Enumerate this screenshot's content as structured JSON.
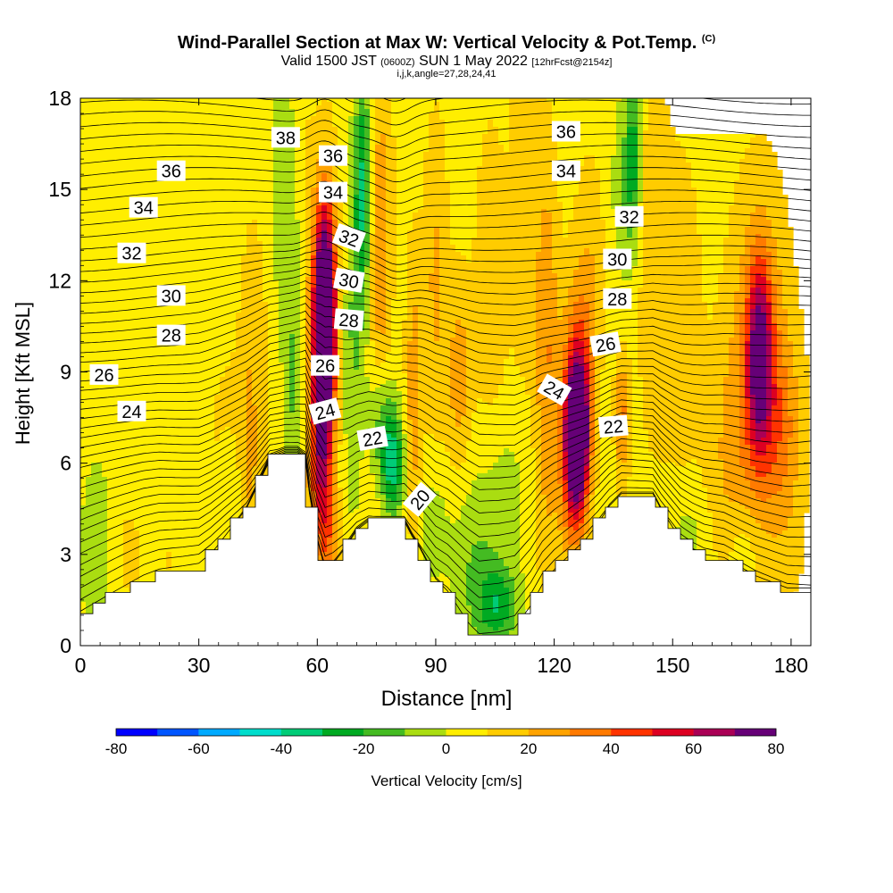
{
  "title": {
    "main": "Wind-Parallel Section at Max W: Vertical Velocity & Pot.Temp.",
    "copyright": "(C)",
    "valid_a": "Valid 1500 JST",
    "valid_z": "(0600Z)",
    "valid_b": "SUN 1 May 2022",
    "fcst": "[12hrFcst@2154z]",
    "params": "i,j,k,angle=27,28,24,41"
  },
  "chart_data": {
    "type": "heatmap",
    "xlabel": "Distance [nm]",
    "ylabel": "Height [Kft MSL]",
    "xlim": [
      0,
      185
    ],
    "ylim": [
      0,
      18
    ],
    "x_ticks": [
      "0",
      "30",
      "60",
      "90",
      "120",
      "150",
      "180"
    ],
    "y_ticks": [
      "0",
      "3",
      "6",
      "9",
      "12",
      "15",
      "18"
    ],
    "colorbar": {
      "label": "Vertical Velocity [cm/s]",
      "min": -80,
      "max": 80,
      "step": 10,
      "tick_labels": [
        "-80",
        "-60",
        "-40",
        "-20",
        "0",
        "20",
        "40",
        "60",
        "80"
      ],
      "colors": [
        "#0000ff",
        "#0055ff",
        "#00aaff",
        "#00ddcc",
        "#00cc77",
        "#00aa22",
        "#44bb22",
        "#aadd11",
        "#ffee00",
        "#ffcc00",
        "#ffa300",
        "#ff7a00",
        "#ff3300",
        "#dd0022",
        "#aa0055",
        "#660077"
      ]
    },
    "terrain_kft": [
      [
        0,
        1.0
      ],
      [
        4,
        1.3
      ],
      [
        8,
        1.6
      ],
      [
        12,
        1.9
      ],
      [
        16,
        2.2
      ],
      [
        20,
        2.4
      ],
      [
        26,
        2.5
      ],
      [
        30,
        2.6
      ],
      [
        33,
        3.0
      ],
      [
        36,
        3.5
      ],
      [
        39,
        4.0
      ],
      [
        42,
        4.5
      ],
      [
        45,
        5.3
      ],
      [
        48,
        6.1
      ],
      [
        52,
        6.3
      ],
      [
        55,
        6.3
      ],
      [
        57,
        6.1
      ],
      [
        58,
        5.0
      ],
      [
        60,
        3.5
      ],
      [
        62,
        2.5
      ],
      [
        64,
        2.7
      ],
      [
        67,
        3.2
      ],
      [
        70,
        3.8
      ],
      [
        73,
        4.1
      ],
      [
        78,
        4.1
      ],
      [
        82,
        4.1
      ],
      [
        84,
        3.6
      ],
      [
        86,
        3.2
      ],
      [
        88,
        2.7
      ],
      [
        90,
        2.2
      ],
      [
        93,
        1.8
      ],
      [
        96,
        1.2
      ],
      [
        98,
        0.8
      ],
      [
        101,
        0.3
      ],
      [
        106,
        0.3
      ],
      [
        110,
        0.4
      ],
      [
        114,
        1.2
      ],
      [
        117,
        2.0
      ],
      [
        120,
        2.5
      ],
      [
        124,
        3.0
      ],
      [
        128,
        3.5
      ],
      [
        131,
        4.0
      ],
      [
        134,
        4.6
      ],
      [
        137,
        5.0
      ],
      [
        141,
        5.0
      ],
      [
        145,
        5.0
      ],
      [
        147,
        4.5
      ],
      [
        149,
        4.1
      ],
      [
        152,
        3.5
      ],
      [
        155,
        3.2
      ],
      [
        158,
        3.0
      ],
      [
        163,
        2.9
      ],
      [
        167,
        2.6
      ],
      [
        171,
        2.3
      ],
      [
        175,
        2.1
      ],
      [
        179,
        1.9
      ],
      [
        185,
        1.9
      ]
    ],
    "w_cells": [
      {
        "x": 8,
        "y": 13,
        "sx": 6,
        "sy": 4,
        "w": 0
      },
      {
        "x": 28,
        "y": 12,
        "sx": 3,
        "sy": 5,
        "w": 7
      },
      {
        "x": 20,
        "y": 16,
        "sx": 12,
        "sy": 2,
        "w": 8
      },
      {
        "x": 38,
        "y": 6,
        "sx": 8,
        "sy": 5,
        "w": 12
      },
      {
        "x": 4,
        "y": 3,
        "sx": 4,
        "sy": 3,
        "w": -10
      },
      {
        "x": 12,
        "y": 3,
        "sx": 4,
        "sy": 2,
        "w": 12
      },
      {
        "x": 22,
        "y": 2.8,
        "sx": 5,
        "sy": 2,
        "w": 10
      },
      {
        "x": 38,
        "y": 4.5,
        "sx": 3,
        "sy": 2,
        "w": -5
      },
      {
        "x": 43,
        "y": 7,
        "sx": 2.5,
        "sy": 6,
        "w": 18
      },
      {
        "x": 47,
        "y": 10,
        "sx": 3,
        "sy": 8,
        "w": 10
      },
      {
        "x": 54,
        "y": 8,
        "sx": 2.5,
        "sy": 6,
        "w": -10
      },
      {
        "x": 51,
        "y": 15,
        "sx": 3,
        "sy": 5,
        "w": -8
      },
      {
        "x": 62,
        "y": 10.5,
        "sx": 2.6,
        "sy": 3,
        "w": 80
      },
      {
        "x": 61,
        "y": 9,
        "sx": 3,
        "sy": 4,
        "w": 50
      },
      {
        "x": 62,
        "y": 13,
        "sx": 3,
        "sy": 3.5,
        "w": 35
      },
      {
        "x": 61,
        "y": 5.5,
        "sx": 3,
        "sy": 2.5,
        "w": 40
      },
      {
        "x": 63,
        "y": 3.2,
        "sx": 3,
        "sy": 1.5,
        "w": 25
      },
      {
        "x": 69,
        "y": 10,
        "sx": 2.5,
        "sy": 6,
        "w": -10
      },
      {
        "x": 71.5,
        "y": 15,
        "sx": 2,
        "sy": 4,
        "w": -30
      },
      {
        "x": 76,
        "y": 13,
        "sx": 2.5,
        "sy": 6,
        "w": 28
      },
      {
        "x": 79,
        "y": 6,
        "sx": 3,
        "sy": 1.8,
        "w": -35
      },
      {
        "x": 76,
        "y": 7.5,
        "sx": 3,
        "sy": 2,
        "w": -15
      },
      {
        "x": 84.5,
        "y": 8,
        "sx": 2,
        "sy": 4.5,
        "w": 28
      },
      {
        "x": 90,
        "y": 12,
        "sx": 3,
        "sy": 5,
        "w": 22
      },
      {
        "x": 89,
        "y": 4,
        "sx": 4,
        "sy": 2,
        "w": -6
      },
      {
        "x": 96,
        "y": 9,
        "sx": 3,
        "sy": 3,
        "w": 25
      },
      {
        "x": 104,
        "y": 12,
        "sx": 4,
        "sy": 5,
        "w": 18
      },
      {
        "x": 100,
        "y": 2.5,
        "sx": 6,
        "sy": 3,
        "w": -10
      },
      {
        "x": 106,
        "y": 1.3,
        "sx": 5,
        "sy": 1.3,
        "w": -25
      },
      {
        "x": 108,
        "y": 5,
        "sx": 6,
        "sy": 2.5,
        "w": -4
      },
      {
        "x": 112,
        "y": 15,
        "sx": 3,
        "sy": 6,
        "w": 18
      },
      {
        "x": 118,
        "y": 10,
        "sx": 3,
        "sy": 6,
        "w": 30
      },
      {
        "x": 126,
        "y": 7,
        "sx": 2.5,
        "sy": 2,
        "w": 80
      },
      {
        "x": 125,
        "y": 6,
        "sx": 3.5,
        "sy": 3,
        "w": 55
      },
      {
        "x": 126,
        "y": 9,
        "sx": 4,
        "sy": 3,
        "w": 35
      },
      {
        "x": 129,
        "y": 12,
        "sx": 4,
        "sy": 4,
        "w": 18
      },
      {
        "x": 134,
        "y": 7,
        "sx": 2.5,
        "sy": 3,
        "w": 0
      },
      {
        "x": 137,
        "y": 7.5,
        "sx": 2,
        "sy": 2,
        "w": 35
      },
      {
        "x": 140,
        "y": 16,
        "sx": 2,
        "sy": 3,
        "w": -25
      },
      {
        "x": 137,
        "y": 15,
        "sx": 3,
        "sy": 3.5,
        "w": -5
      },
      {
        "x": 145,
        "y": 13,
        "sx": 4,
        "sy": 6,
        "w": 18
      },
      {
        "x": 152,
        "y": 11,
        "sx": 5,
        "sy": 5,
        "w": 18
      },
      {
        "x": 164,
        "y": 6,
        "sx": 6,
        "sy": 4,
        "w": 18
      },
      {
        "x": 172,
        "y": 9.5,
        "sx": 3,
        "sy": 3,
        "w": 60
      },
      {
        "x": 172,
        "y": 9,
        "sx": 7,
        "sy": 5.5,
        "w": 35
      },
      {
        "x": 178,
        "y": 7,
        "sx": 5,
        "sy": 3,
        "w": 25
      },
      {
        "x": 154,
        "y": 3.5,
        "sx": 5,
        "sy": 1.5,
        "w": -5
      },
      {
        "x": 168,
        "y": 3.2,
        "sx": 4,
        "sy": 1.5,
        "w": -5
      },
      {
        "x": 180,
        "y": 3,
        "sx": 4,
        "sy": 2,
        "w": 10
      },
      {
        "x": 95,
        "y": 7,
        "sx": 3,
        "sy": 2,
        "w": 8
      },
      {
        "x": 118,
        "y": 4,
        "sx": 3,
        "sy": 2,
        "w": 10
      },
      {
        "x": 57,
        "y": 16,
        "sx": 2,
        "sy": 4,
        "w": 10
      },
      {
        "x": 80,
        "y": 15,
        "sx": 3,
        "sy": 4,
        "w": 8
      }
    ],
    "theta_labels": [
      {
        "text": "38",
        "x": 52,
        "y": 16.7,
        "angle": 0
      },
      {
        "text": "36",
        "x": 23,
        "y": 15.6,
        "angle": 0
      },
      {
        "text": "34",
        "x": 16,
        "y": 14.4,
        "angle": 0
      },
      {
        "text": "32",
        "x": 13,
        "y": 12.9,
        "angle": 0
      },
      {
        "text": "30",
        "x": 23,
        "y": 11.5,
        "angle": 0
      },
      {
        "text": "28",
        "x": 23,
        "y": 10.2,
        "angle": 0
      },
      {
        "text": "26",
        "x": 6,
        "y": 8.9,
        "angle": 0
      },
      {
        "text": "24",
        "x": 13,
        "y": 7.7,
        "angle": 0
      },
      {
        "text": "36",
        "x": 64,
        "y": 16.1,
        "angle": 0
      },
      {
        "text": "34",
        "x": 64,
        "y": 14.9,
        "angle": 0
      },
      {
        "text": "32",
        "x": 68,
        "y": 13.4,
        "angle": 20
      },
      {
        "text": "30",
        "x": 68,
        "y": 12.0,
        "angle": 10
      },
      {
        "text": "28",
        "x": 68,
        "y": 10.7,
        "angle": 5
      },
      {
        "text": "26",
        "x": 62,
        "y": 9.2,
        "angle": 0
      },
      {
        "text": "24",
        "x": 62,
        "y": 7.7,
        "angle": -15
      },
      {
        "text": "22",
        "x": 74,
        "y": 6.8,
        "angle": -10
      },
      {
        "text": "20",
        "x": 86,
        "y": 4.8,
        "angle": -50
      },
      {
        "text": "36",
        "x": 123,
        "y": 16.9,
        "angle": 0
      },
      {
        "text": "34",
        "x": 123,
        "y": 15.6,
        "angle": 0
      },
      {
        "text": "32",
        "x": 139,
        "y": 14.1,
        "angle": 0
      },
      {
        "text": "30",
        "x": 136,
        "y": 12.7,
        "angle": 0
      },
      {
        "text": "28",
        "x": 136,
        "y": 11.4,
        "angle": 0
      },
      {
        "text": "26",
        "x": 133,
        "y": 9.9,
        "angle": -10
      },
      {
        "text": "24",
        "x": 120,
        "y": 8.4,
        "angle": 30
      },
      {
        "text": "22",
        "x": 135,
        "y": 7.2,
        "angle": -5
      }
    ]
  }
}
